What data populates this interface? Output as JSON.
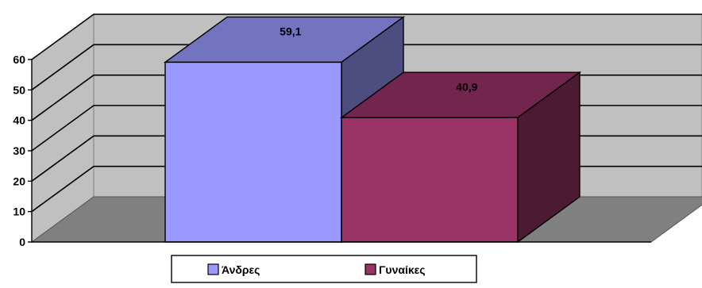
{
  "chart_data": {
    "type": "bar",
    "categories": [
      "Άνδρες",
      "Γυναίκες"
    ],
    "values": [
      59.1,
      40.9
    ],
    "data_labels": [
      "59,1",
      "40,9"
    ],
    "colors": {
      "Άνδρες": "#9999ff",
      "Γυναίκες": "#993366"
    },
    "ylim": [
      0,
      60
    ],
    "yticks": [
      "0",
      "10",
      "20",
      "30",
      "40",
      "50",
      "60"
    ],
    "grid": true,
    "three_d": true,
    "legend": {
      "position": "bottom",
      "entries": [
        "Άνδρες",
        "Γυναίκες"
      ]
    },
    "title": "",
    "xlabel": "",
    "ylabel": ""
  }
}
